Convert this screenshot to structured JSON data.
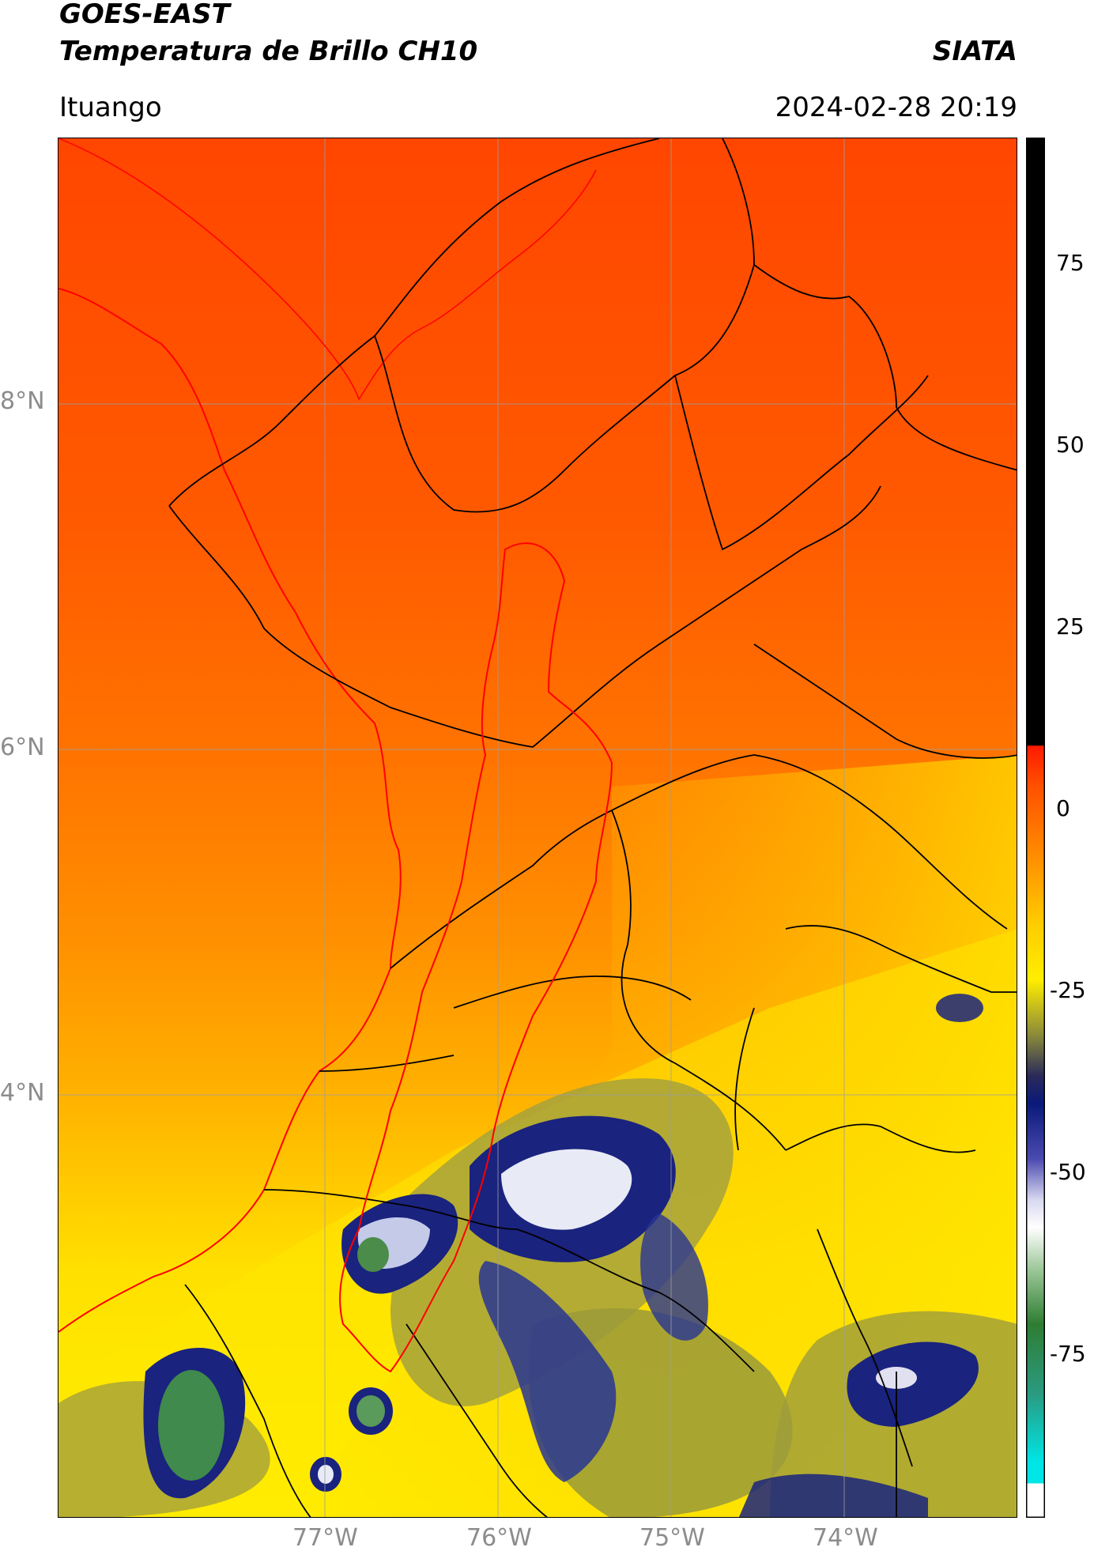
{
  "header": {
    "line1": "GOES-EAST",
    "line2": "Temperatura de Brillo CH10",
    "source": "SIATA",
    "region": "Ituango",
    "datetime": "2024-02-28 20:19"
  },
  "axes": {
    "lat_ticks": [
      "8°N",
      "6°N",
      "4°N"
    ],
    "lon_ticks": [
      "77°W",
      "76°W",
      "75°W",
      "74°W"
    ]
  },
  "colorbar": {
    "ticks": [
      "75",
      "50",
      "25",
      "0",
      "-25",
      "-50",
      "-75"
    ],
    "colors": {
      "black": "#000000",
      "red": "#ff1a00",
      "orange": "#ff7a00",
      "yellow": "#ffee00",
      "olive": "#8c8c3a",
      "navy": "#0a1a7a",
      "white": "#ffffff",
      "green": "#2e7d32",
      "cyan": "#00e5e5"
    }
  },
  "map": {
    "colors": {
      "warm_north": "#ff4a00",
      "mid": "#ff8c00",
      "south": "#ffd800",
      "cold_cloud": "#1a237e",
      "border": "#000000",
      "basin": "#ff0000"
    }
  }
}
